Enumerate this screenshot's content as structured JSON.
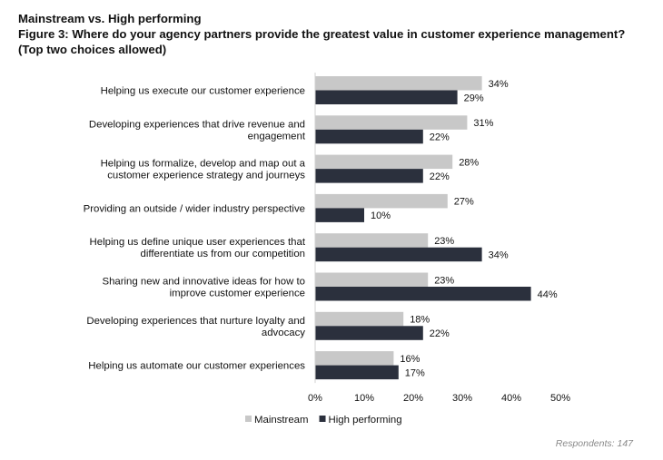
{
  "header": {
    "title": "Mainstream vs. High performing",
    "figure_title": "Figure 3: Where do your agency partners provide the greatest value in customer experience management?",
    "note": "(Top two choices allowed)"
  },
  "footer": {
    "respondents": "Respondents: 147"
  },
  "colors": {
    "mainstream": "#c8c8c8",
    "high_performing": "#2b303d"
  },
  "chart_data": {
    "type": "bar",
    "orientation": "horizontal",
    "categories": [
      [
        "Helping us execute our customer experience"
      ],
      [
        "Developing experiences that drive revenue and",
        "engagement"
      ],
      [
        "Helping us formalize, develop and map out a",
        "customer experience strategy and journeys"
      ],
      [
        "Providing an outside / wider industry perspective"
      ],
      [
        "Helping us define unique user experiences that",
        "differentiate us from our competition"
      ],
      [
        "Sharing new and innovative ideas for how to",
        "improve customer experience"
      ],
      [
        "Developing experiences that nurture loyalty and",
        "advocacy"
      ],
      [
        "Helping us automate our customer experiences"
      ]
    ],
    "series": [
      {
        "name": "Mainstream",
        "values": [
          34,
          31,
          28,
          27,
          23,
          23,
          18,
          16
        ]
      },
      {
        "name": "High performing",
        "values": [
          29,
          22,
          22,
          10,
          34,
          44,
          22,
          17
        ]
      }
    ],
    "xlim": [
      0,
      50
    ],
    "xticks": [
      0,
      10,
      20,
      30,
      40,
      50
    ],
    "value_format": "{v}%",
    "grid": false,
    "legend": "bottom"
  }
}
